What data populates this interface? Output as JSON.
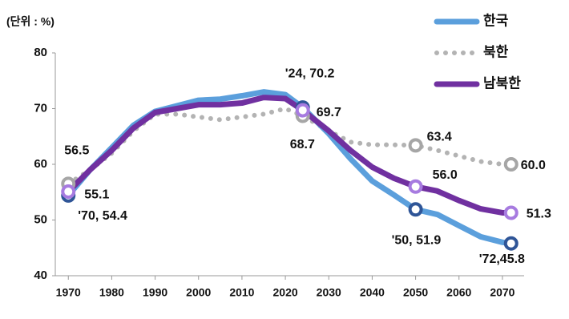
{
  "chart_data": {
    "type": "line",
    "y_label": "(단위 : %)",
    "x": [
      1970,
      1975,
      1980,
      1985,
      1990,
      1995,
      2000,
      2005,
      2010,
      2015,
      2020,
      2024,
      2030,
      2035,
      2040,
      2045,
      2050,
      2055,
      2060,
      2065,
      2070,
      2072
    ],
    "series": [
      {
        "name": "한국",
        "color": "#5b9fdc",
        "label_color": "#2f5597",
        "values": [
          54.4,
          59,
          63,
          67,
          69.5,
          70.5,
          71.5,
          71.7,
          72.3,
          73,
          72.5,
          70.2,
          65.5,
          61,
          57,
          54.5,
          51.9,
          51,
          49,
          47,
          46,
          45.8
        ],
        "value_labels": [
          "'70, 54.4",
          null,
          null,
          null,
          null,
          null,
          null,
          null,
          null,
          null,
          null,
          "'24, 70.2",
          null,
          null,
          null,
          null,
          "'50, 51.9",
          null,
          null,
          null,
          null,
          "'72,45.8"
        ]
      },
      {
        "name": "북한",
        "color": "#b3b3b3",
        "label_color": "#333333",
        "values": [
          56.5,
          59,
          62,
          66,
          69,
          69,
          68.5,
          68,
          68.5,
          69,
          70,
          68.7,
          66,
          64,
          63.5,
          63.5,
          63.4,
          62.5,
          61.5,
          60.5,
          60,
          60.0
        ],
        "value_labels": [
          "56.5",
          null,
          null,
          null,
          null,
          null,
          null,
          null,
          null,
          null,
          null,
          "68.7",
          null,
          null,
          null,
          null,
          "63.4",
          null,
          null,
          null,
          null,
          "60.0"
        ]
      },
      {
        "name": "남북한",
        "color": "#7030a0",
        "label_color": "#7030a0",
        "values": [
          55.1,
          59,
          62.5,
          66.5,
          69.3,
          70,
          70.7,
          70.7,
          71,
          72,
          71.8,
          69.7,
          66,
          62.5,
          59.5,
          57.5,
          56.0,
          55.2,
          53.5,
          52,
          51.3,
          51.3
        ],
        "value_labels": [
          "55.1",
          null,
          null,
          null,
          null,
          null,
          null,
          null,
          null,
          null,
          null,
          "69.7",
          null,
          null,
          null,
          null,
          "56.0",
          null,
          null,
          null,
          null,
          "51.3"
        ]
      }
    ],
    "xlim": [
      1967,
      2075
    ],
    "xticks": [
      1970,
      1980,
      1990,
      2000,
      2010,
      2020,
      2030,
      2040,
      2050,
      2060,
      2070
    ],
    "ylim": [
      40,
      80
    ],
    "yticks": [
      40,
      50,
      60,
      70,
      80
    ],
    "grid": false,
    "legend": "top-right"
  }
}
